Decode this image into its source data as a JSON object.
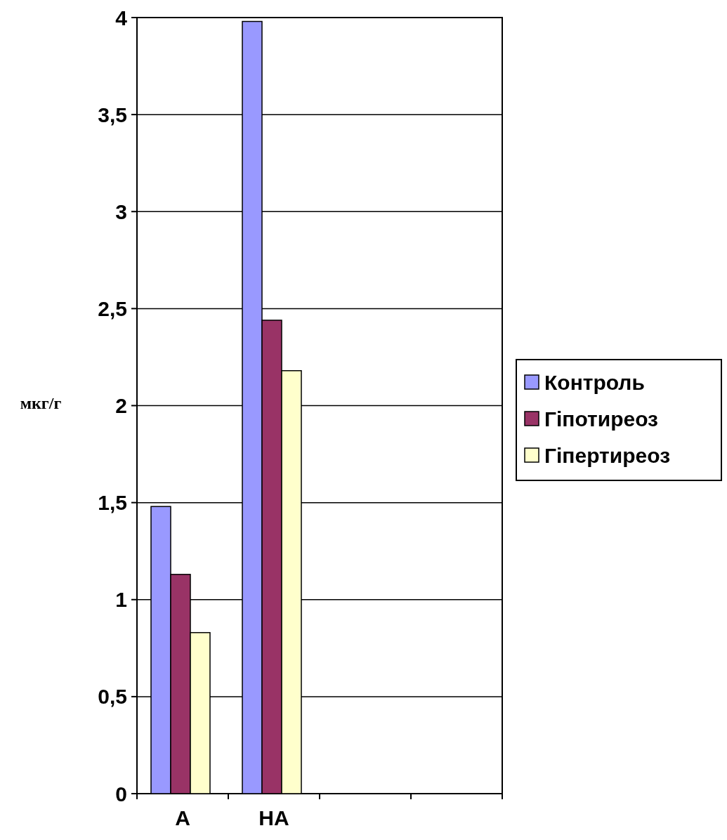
{
  "chart_data": {
    "type": "bar",
    "ylabel": "мкг/г",
    "categories": [
      "А",
      "НА",
      null,
      null
    ],
    "series": [
      {
        "name": "Контроль",
        "color": "#9999ff",
        "values": [
          1.48,
          3.98,
          null,
          null
        ]
      },
      {
        "name": "Гіпотиреоз",
        "color": "#993366",
        "values": [
          1.13,
          2.44,
          null,
          null
        ]
      },
      {
        "name": "Гіпертиреоз",
        "color": "#ffffcc",
        "values": [
          0.83,
          2.18,
          null,
          null
        ]
      }
    ],
    "ylim": [
      0,
      4
    ],
    "yticks": [
      0,
      {
        "value": 0.5,
        "label": "0,5"
      },
      1,
      {
        "value": 1.5,
        "label": "1,5"
      },
      2,
      {
        "value": 2.5,
        "label": "2,5"
      },
      3,
      {
        "value": 3.5,
        "label": "3,5"
      },
      4
    ],
    "grid": "y",
    "legend": "right"
  }
}
